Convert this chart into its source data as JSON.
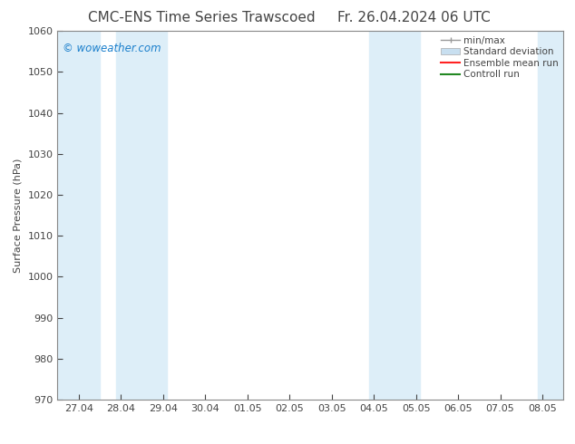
{
  "title": "CMC-ENS Time Series Trawscoed",
  "title_right": "Fr. 26.04.2024 06 UTC",
  "ylabel": "Surface Pressure (hPa)",
  "ylim": [
    970,
    1060
  ],
  "yticks": [
    970,
    980,
    990,
    1000,
    1010,
    1020,
    1030,
    1040,
    1050,
    1060
  ],
  "x_labels": [
    "27.04",
    "28.04",
    "29.04",
    "30.04",
    "01.05",
    "02.05",
    "03.05",
    "04.05",
    "05.05",
    "06.05",
    "07.05",
    "08.05"
  ],
  "x_positions": [
    0,
    1,
    2,
    3,
    4,
    5,
    6,
    7,
    8,
    9,
    10,
    11
  ],
  "band_color": "#ddeef8",
  "band_ranges": [
    [
      -0.5,
      0.5
    ],
    [
      0.9,
      2.1
    ],
    [
      6.9,
      8.1
    ],
    [
      10.9,
      11.5
    ]
  ],
  "watermark": "© woweather.com",
  "watermark_color": "#1a7fcc",
  "bg_color": "#ffffff",
  "plot_bg_color": "#ffffff",
  "font_color": "#444444",
  "title_fontsize": 11,
  "axis_fontsize": 8,
  "tick_fontsize": 8,
  "legend_fontsize": 7.5
}
